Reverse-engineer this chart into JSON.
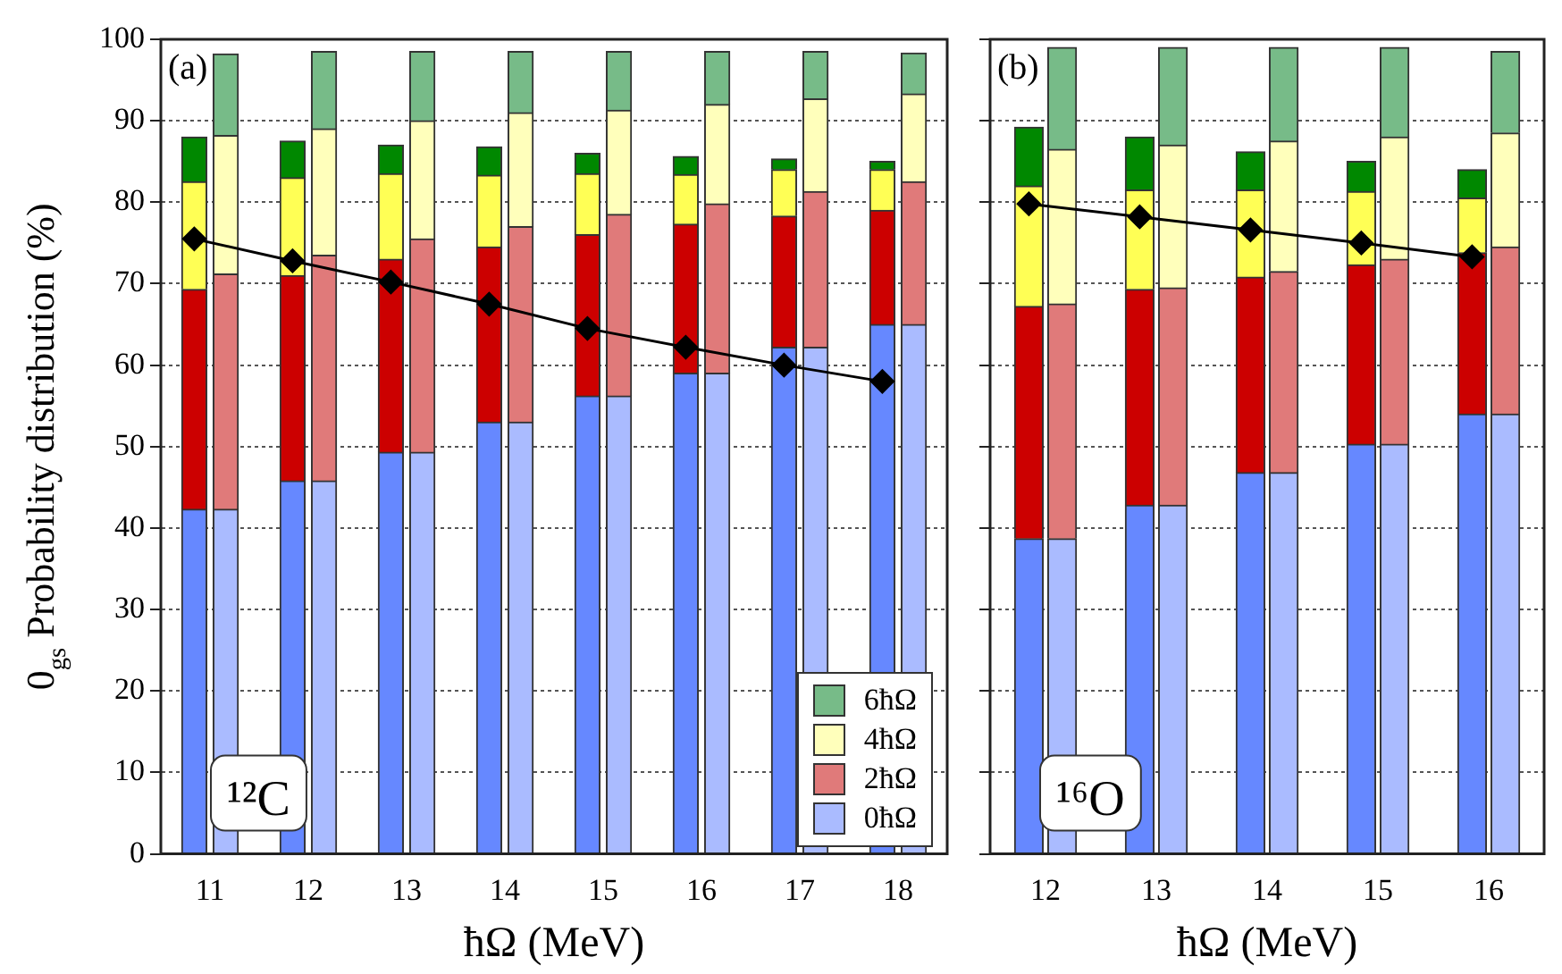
{
  "chart_data": [
    {
      "type": "bar",
      "stacked": true,
      "xlabel": "ħΩ (MeV)",
      "ylabel": "0$_{gs}$ Probability distribution (%)",
      "xlim": [
        10.5,
        18.5
      ],
      "xticks": [
        11,
        12,
        13,
        14,
        15,
        16,
        17,
        18
      ],
      "ylim": [
        0,
        100
      ],
      "yticks": [
        0,
        10,
        20,
        30,
        40,
        50,
        60,
        70,
        80,
        90,
        100
      ],
      "grid": "y",
      "legend": "bottom right",
      "marker": "diamond",
      "annotations": [
        "(a)",
        "¹²C"
      ],
      "series": [
        {
          "name": "0ħΩ",
          "color": "#aabbff",
          "x": [
            10.84,
            11.16,
            11.84,
            12.16,
            12.84,
            13.16,
            13.84,
            14.16,
            14.84,
            15.16,
            15.84,
            16.16,
            16.84,
            17.16,
            17.84,
            18.16
          ],
          "colors": [
            "#6688ff",
            "#aabbff",
            "#6688ff",
            "#aabbff",
            "#6688ff",
            "#aabbff",
            "#6688ff",
            "#aabbff",
            "#6688ff",
            "#aabbff",
            "#6688ff",
            "#aabbff",
            "#6688ff",
            "#aabbff",
            "#6688ff",
            "#aabbff"
          ],
          "values": [
            42.3,
            42.3,
            45.8,
            45.8,
            49.3,
            49.3,
            53,
            53,
            56.2,
            56.2,
            59,
            59,
            62.2,
            62.2,
            65,
            65
          ]
        },
        {
          "name": "2ħΩ",
          "color": "#e07a7a",
          "x": [
            10.84,
            11.16,
            11.84,
            12.16,
            12.84,
            13.16,
            13.84,
            14.16,
            14.84,
            15.16,
            15.84,
            16.16,
            16.84,
            17.16,
            17.84,
            18.16
          ],
          "colors": [
            "#cc0000",
            "#e07a7a",
            "#cc0000",
            "#e07a7a",
            "#cc0000",
            "#e07a7a",
            "#cc0000",
            "#e07a7a",
            "#cc0000",
            "#e07a7a",
            "#cc0000",
            "#e07a7a",
            "#cc0000",
            "#e07a7a",
            "#cc0000",
            "#e07a7a"
          ],
          "values": [
            27,
            28.9,
            25.2,
            27.7,
            23.7,
            26.2,
            21.5,
            24,
            19.8,
            22.3,
            18.3,
            20.8,
            16.1,
            19.1,
            14,
            17.5
          ]
        },
        {
          "name": "4ħΩ",
          "color": "#ffffbb",
          "x": [
            10.84,
            11.16,
            11.84,
            12.16,
            12.84,
            13.16,
            13.84,
            14.16,
            14.84,
            15.16,
            15.84,
            16.16,
            16.84,
            17.16,
            17.84,
            18.16
          ],
          "colors": [
            "#ffff55",
            "#ffffbb",
            "#ffff55",
            "#ffffbb",
            "#ffff55",
            "#ffffbb",
            "#ffff55",
            "#ffffbb",
            "#ffff55",
            "#ffffbb",
            "#ffff55",
            "#ffffbb",
            "#ffff55",
            "#ffffbb",
            "#ffff55",
            "#ffffbb"
          ],
          "values": [
            13.2,
            17,
            12,
            15.5,
            10.5,
            14.5,
            8.8,
            14,
            7.5,
            12.8,
            6.1,
            12.2,
            5.7,
            11.4,
            5,
            10.8
          ]
        },
        {
          "name": "6ħΩ",
          "color": "#77bb88",
          "x": [
            10.84,
            11.16,
            11.84,
            12.16,
            12.84,
            13.16,
            13.84,
            14.16,
            14.84,
            15.16,
            15.84,
            16.16,
            16.84,
            17.16,
            17.84,
            18.16
          ],
          "colors": [
            "#008800",
            "#77bb88",
            "#008800",
            "#77bb88",
            "#008800",
            "#77bb88",
            "#008800",
            "#77bb88",
            "#008800",
            "#77bb88",
            "#008800",
            "#77bb88",
            "#008800",
            "#77bb88",
            "#008800",
            "#77bb88"
          ],
          "values": [
            5.5,
            10,
            4.5,
            9.5,
            3.5,
            8.5,
            3.5,
            7.5,
            2.5,
            7.2,
            2.2,
            6.5,
            1.3,
            5.8,
            1,
            5
          ]
        },
        {
          "type": "line",
          "color": "#000000",
          "x": [
            10.84,
            11.84,
            12.84,
            13.84,
            14.84,
            15.84,
            16.84,
            17.84
          ],
          "values": [
            75.5,
            72.8,
            70.2,
            67.5,
            64.5,
            62.2,
            60,
            58
          ]
        }
      ]
    },
    {
      "type": "bar",
      "stacked": true,
      "xlabel": "ħΩ (MeV)",
      "xlim": [
        11.5,
        16.5
      ],
      "xticks": [
        12,
        13,
        14,
        15,
        16
      ],
      "ylim": [
        0,
        100
      ],
      "yticks": [
        0,
        10,
        20,
        30,
        40,
        50,
        60,
        70,
        80,
        90,
        100
      ],
      "tick_labels": "x",
      "grid": "y",
      "marker": "diamond",
      "annotations": [
        "(b)",
        "¹⁶O"
      ],
      "series": [
        {
          "x": [
            11.85,
            12.15,
            12.85,
            13.15,
            13.85,
            14.15,
            14.85,
            15.15,
            15.85,
            16.15
          ],
          "colors": [
            "#6688ff",
            "#aabbff",
            "#6688ff",
            "#aabbff",
            "#6688ff",
            "#aabbff",
            "#6688ff",
            "#aabbff",
            "#6688ff",
            "#aabbff"
          ],
          "values": [
            38.7,
            38.7,
            42.8,
            42.8,
            46.8,
            46.8,
            50.3,
            50.3,
            54,
            54
          ]
        },
        {
          "x": [
            11.85,
            12.15,
            12.85,
            13.15,
            13.85,
            14.15,
            14.85,
            15.15,
            15.85,
            16.15
          ],
          "colors": [
            "#cc0000",
            "#e07a7a",
            "#cc0000",
            "#e07a7a",
            "#cc0000",
            "#e07a7a",
            "#cc0000",
            "#e07a7a",
            "#cc0000",
            "#e07a7a"
          ],
          "values": [
            28.5,
            28.8,
            26.5,
            26.7,
            24,
            24.7,
            22,
            22.7,
            19.8,
            20.5
          ]
        },
        {
          "x": [
            11.85,
            12.15,
            12.85,
            13.15,
            13.85,
            14.15,
            14.85,
            15.15,
            15.85,
            16.15
          ],
          "colors": [
            "#ffff55",
            "#ffffbb",
            "#ffff55",
            "#ffffbb",
            "#ffff55",
            "#ffffbb",
            "#ffff55",
            "#ffffbb",
            "#ffff55",
            "#ffffbb"
          ],
          "values": [
            14.8,
            19,
            12.2,
            17.5,
            10.7,
            16,
            9,
            15,
            6.7,
            14
          ]
        },
        {
          "x": [
            11.85,
            12.15,
            12.85,
            13.15,
            13.85,
            14.15,
            14.85,
            15.15,
            15.85,
            16.15
          ],
          "colors": [
            "#008800",
            "#77bb88",
            "#008800",
            "#77bb88",
            "#008800",
            "#77bb88",
            "#008800",
            "#77bb88",
            "#008800",
            "#77bb88"
          ],
          "values": [
            7.2,
            12.5,
            6.5,
            12,
            4.7,
            11.5,
            3.7,
            11,
            3.5,
            10
          ]
        },
        {
          "type": "line",
          "color": "#000000",
          "x": [
            11.85,
            12.85,
            13.85,
            14.85,
            15.85
          ],
          "values": [
            79.8,
            78.2,
            76.6,
            75,
            73.3
          ]
        }
      ]
    }
  ]
}
